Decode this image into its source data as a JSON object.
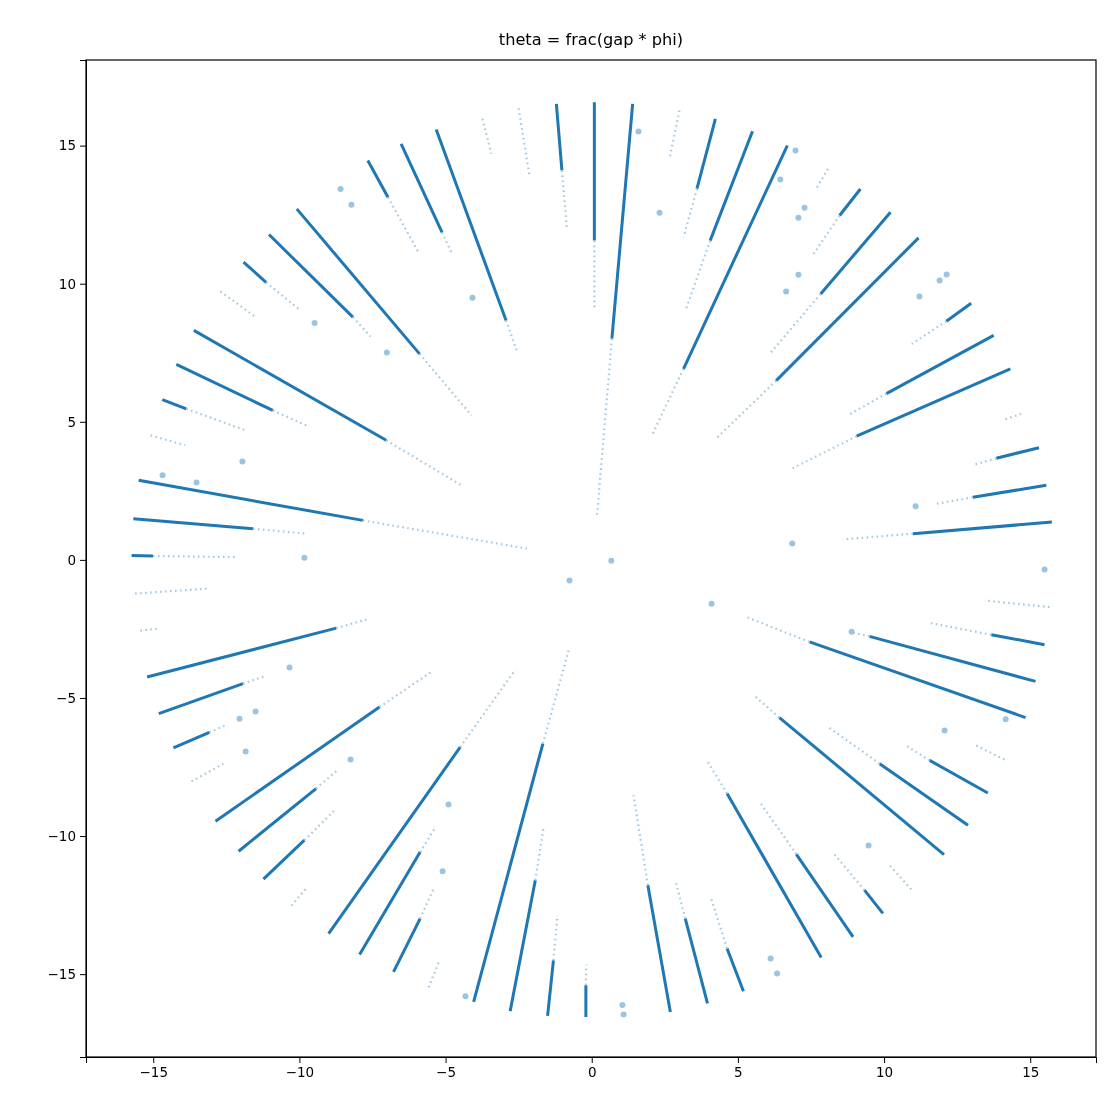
{
  "chart_data": {
    "type": "scatter",
    "title": "theta = frac(gap * phi)",
    "xlim": [
      -17.3,
      17.25
    ],
    "ylim": [
      -18.0,
      18.1
    ],
    "xticks": [
      {
        "value": -15,
        "label": "−15"
      },
      {
        "value": -10,
        "label": "−10"
      },
      {
        "value": -5,
        "label": "−5"
      },
      0,
      5,
      10,
      15
    ],
    "yticks": [
      {
        "value": -15,
        "label": "−15"
      },
      {
        "value": -10,
        "label": "−10"
      },
      {
        "value": -5,
        "label": "−5"
      },
      0,
      5,
      10,
      15
    ],
    "series": [
      {
        "type": "line",
        "color": "#1f77b4",
        "line_style": "solid",
        "x": [
          0.09,
          0.09,
          null,
          1.4,
          0.69,
          null,
          -1.21,
          -1.02,
          null,
          -5.32,
          -2.93,
          null,
          -6.52,
          -5.12,
          null,
          -7.66,
          -6.97,
          null,
          -10.09,
          -5.89,
          null,
          -11.04,
          -8.17,
          null,
          -11.91,
          -11.14,
          null,
          -13.61,
          -7.03,
          null,
          -14.21,
          -10.91,
          null,
          -14.69,
          -13.87,
          null,
          -15.5,
          -7.83,
          null,
          -15.68,
          -11.59,
          null,
          -15.74,
          -15.01,
          null,
          -15.21,
          -8.74,
          null,
          -14.81,
          -11.93,
          null,
          -14.31,
          -13.08,
          null,
          -12.87,
          -7.26,
          null,
          -12.08,
          -9.43,
          null,
          -11.23,
          -9.83,
          null,
          -9.0,
          -4.5,
          null,
          -7.94,
          -5.87,
          null,
          -6.78,
          -5.87,
          null,
          -4.04,
          -1.67,
          null,
          -2.79,
          -1.93,
          null,
          -1.51,
          -1.31,
          null,
          -0.2,
          -0.2,
          null,
          2.69,
          1.92,
          null,
          3.96,
          3.2,
          null,
          5.19,
          4.63,
          null,
          7.85,
          4.63,
          null,
          8.94,
          7.0,
          null,
          9.96,
          9.33,
          null,
          12.05,
          6.42,
          null,
          12.87,
          9.85,
          null,
          14.84,
          7.45,
          null,
          13.55,
          11.56,
          null,
          15.18,
          9.5,
          null,
          15.49,
          13.67,
          null,
          15.74,
          10.99,
          null,
          15.55,
          13.04,
          null,
          15.3,
          13.84,
          null,
          14.32,
          9.06,
          null,
          13.75,
          10.08,
          null,
          12.98,
          12.13,
          null,
          11.18,
          6.31,
          null,
          10.22,
          7.83,
          null,
          9.19,
          8.48,
          null,
          6.69,
          3.14,
          null,
          5.5,
          4.05,
          null,
          4.23,
          3.6
        ],
        "values": [
          16.57,
          11.56,
          null,
          16.51,
          8.01,
          null,
          16.51,
          14.1,
          null,
          15.58,
          8.67,
          null,
          15.06,
          11.86,
          null,
          14.46,
          13.13,
          null,
          12.71,
          7.46,
          null,
          11.78,
          8.79,
          null,
          10.78,
          10.05,
          null,
          8.31,
          4.33,
          null,
          7.08,
          5.41,
          null,
          5.8,
          5.47,
          null,
          2.88,
          1.43,
          null,
          1.49,
          1.13,
          null,
          0.16,
          0.14,
          null,
          -4.24,
          -2.47,
          null,
          -5.57,
          -4.48,
          null,
          -6.81,
          -6.25,
          null,
          -9.46,
          -5.33,
          null,
          -10.55,
          -8.28,
          null,
          -11.56,
          -10.15,
          null,
          -13.53,
          -6.78,
          null,
          -14.29,
          -10.58,
          null,
          -14.92,
          -12.99,
          null,
          -16.0,
          -6.65,
          null,
          -16.34,
          -11.6,
          null,
          -16.51,
          -14.5,
          null,
          -16.55,
          -15.4,
          null,
          -16.37,
          -11.78,
          null,
          -16.06,
          -12.99,
          null,
          -15.62,
          -14.07,
          null,
          -14.4,
          -8.46,
          null,
          -13.65,
          -10.66,
          null,
          -12.8,
          -11.96,
          null,
          -10.67,
          -5.71,
          null,
          -9.61,
          -7.38,
          null,
          -5.71,
          -2.97,
          null,
          -8.44,
          -7.26,
          null,
          -4.4,
          -2.77,
          null,
          -3.07,
          -2.71,
          null,
          1.37,
          0.95,
          null,
          2.7,
          2.27,
          null,
          4.06,
          3.68,
          null,
          6.92,
          4.48,
          null,
          8.13,
          6.02,
          null,
          9.29,
          8.64,
          null,
          11.66,
          6.49,
          null,
          12.59,
          9.63,
          null,
          13.43,
          12.47,
          null,
          15.0,
          6.92,
          null,
          15.52,
          11.56,
          null,
          15.97,
          13.44
        ]
      },
      {
        "type": "line",
        "color": "#a5c8e3",
        "line_style": "dotted",
        "x": [
          0.09,
          0.09,
          null,
          0.69,
          0.18,
          null,
          -1.02,
          -0.85,
          null,
          -2.5,
          -2.13,
          null,
          -3.74,
          -3.43,
          null,
          -2.93,
          -2.54,
          null,
          -5.12,
          -4.76,
          null,
          -6.97,
          -5.93,
          null,
          -5.89,
          -4.11,
          null,
          -8.17,
          -7.57,
          null,
          -11.14,
          -10.03,
          null,
          -12.7,
          -11.47,
          null,
          -7.03,
          -4.41,
          null,
          -10.91,
          -9.69,
          null,
          -13.87,
          -11.84,
          null,
          -15.09,
          -13.91,
          null,
          -7.83,
          -2.22,
          null,
          -11.59,
          -9.76,
          null,
          -15.01,
          -12.1,
          null,
          -15.62,
          -13.15,
          null,
          -15.44,
          -14.85,
          null,
          -8.74,
          -7.66,
          null,
          -11.93,
          -11.23,
          null,
          -13.08,
          -12.56,
          null,
          -13.69,
          -12.6,
          null,
          -7.26,
          -5.48,
          null,
          -9.43,
          -8.74,
          null,
          -9.83,
          -8.77,
          null,
          -10.27,
          -9.77,
          null,
          -4.5,
          -2.61,
          null,
          -5.87,
          -5.35,
          null,
          -5.87,
          -5.41,
          null,
          -5.58,
          -5.24,
          null,
          -1.67,
          -0.79,
          null,
          -1.93,
          -1.65,
          null,
          -1.31,
          -1.17,
          null,
          -0.2,
          -0.18,
          null,
          1.92,
          1.43,
          null,
          3.2,
          2.87,
          null,
          4.63,
          4.06,
          null,
          4.63,
          3.94,
          null,
          7.0,
          5.78,
          null,
          9.33,
          8.31,
          null,
          10.93,
          10.19,
          null,
          6.42,
          5.54,
          null,
          9.85,
          8.06,
          null,
          7.45,
          5.29,
          null,
          11.56,
          10.7,
          null,
          14.12,
          13.13,
          null,
          9.5,
          8.87,
          null,
          13.67,
          11.49,
          null,
          15.66,
          13.44,
          null,
          10.99,
          8.59,
          null,
          13.04,
          11.79,
          null,
          13.84,
          13.1,
          null,
          14.69,
          14.09,
          null,
          9.06,
          6.77,
          null,
          10.08,
          8.82,
          null,
          12.13,
          10.95,
          null,
          6.31,
          4.28,
          null,
          7.83,
          6.12,
          null,
          8.48,
          7.59,
          null,
          8.08,
          7.66,
          null,
          3.14,
          2.06,
          null,
          4.05,
          3.22,
          null,
          3.6,
          3.14,
          null,
          3.0,
          2.66
        ],
        "values": [
          11.56,
          9.15,
          null,
          8.01,
          1.61,
          null,
          14.1,
          11.99,
          null,
          16.35,
          13.92,
          null,
          15.97,
          14.7,
          null,
          8.67,
          7.5,
          null,
          11.86,
          11.04,
          null,
          13.13,
          11.14,
          null,
          7.46,
          5.23,
          null,
          8.79,
          8.09,
          null,
          10.05,
          9.09,
          null,
          9.72,
          8.77,
          null,
          4.33,
          2.67,
          null,
          5.41,
          4.83,
          null,
          5.47,
          4.69,
          null,
          4.51,
          4.15,
          null,
          1.43,
          0.41,
          null,
          1.13,
          0.95,
          null,
          0.14,
          0.1,
          null,
          -1.22,
          -1.04,
          null,
          -2.56,
          -2.49,
          null,
          -2.47,
          -2.15,
          null,
          -4.48,
          -4.23,
          null,
          -6.25,
          -6.0,
          null,
          -8.02,
          -7.38,
          null,
          -5.33,
          -4.05,
          null,
          -8.28,
          -7.65,
          null,
          -10.15,
          -9.04,
          null,
          -12.52,
          -11.9,
          null,
          -6.78,
          -3.97,
          null,
          -10.58,
          -9.69,
          null,
          -12.99,
          -11.9,
          null,
          -15.48,
          -14.58,
          null,
          -6.65,
          -3.28,
          null,
          -11.6,
          -9.71,
          null,
          -14.5,
          -12.87,
          null,
          -15.4,
          -14.65,
          null,
          -11.78,
          -8.52,
          null,
          -12.99,
          -11.64,
          null,
          -14.07,
          -12.18,
          null,
          -8.46,
          -7.26,
          null,
          -10.66,
          -8.82,
          null,
          -11.96,
          -10.67,
          null,
          -11.93,
          -11.06,
          null,
          -5.71,
          -4.9,
          null,
          -7.38,
          -6.03,
          null,
          -2.97,
          -2.07,
          null,
          -7.26,
          -6.69,
          null,
          -7.23,
          -6.71,
          null,
          -2.77,
          -2.62,
          null,
          -2.71,
          -2.27,
          null,
          -1.71,
          -1.47,
          null,
          0.95,
          0.74,
          null,
          2.27,
          2.03,
          null,
          3.68,
          3.45,
          null,
          5.29,
          5.07,
          null,
          4.48,
          3.26,
          null,
          6.02,
          5.27,
          null,
          8.64,
          7.82,
          null,
          6.49,
          4.42,
          null,
          9.63,
          7.5,
          null,
          12.47,
          11.08,
          null,
          14.16,
          13.4,
          null,
          6.92,
          4.51,
          null,
          11.56,
          9.06,
          null,
          13.44,
          11.68,
          null,
          16.27,
          14.52
        ]
      },
      {
        "type": "scatter",
        "color": "#9cc3e0",
        "marker": "circle",
        "x": [
          -8.59,
          -8.22,
          -7.01,
          -9.48,
          -11.95,
          -14.68,
          -13.52,
          -9.83,
          -10.34,
          -11.5,
          -12.05,
          -11.84,
          -8.25,
          -4.9,
          -5.1,
          -4.08,
          -4.32,
          -0.76,
          0.67,
          1.05,
          1.09,
          6.12,
          6.34,
          9.47,
          8.89,
          12.07,
          14.16,
          15.49,
          6.86,
          11.08,
          11.9,
          12.14,
          11.21,
          7.07,
          7.28,
          6.65,
          7.07,
          6.97,
          6.45,
          1.6,
          2.32,
          4.1
        ],
        "values": [
          13.43,
          12.86,
          7.51,
          8.58,
          3.56,
          3.06,
          2.8,
          0.08,
          -3.9,
          -5.49,
          -5.75,
          -6.94,
          -7.23,
          -8.86,
          -11.27,
          9.49,
          -15.8,
          -0.75,
          -0.03,
          -16.12,
          -16.46,
          -14.43,
          -14.98,
          -10.34,
          -2.6,
          -6.18,
          -5.77,
          -0.35,
          0.59,
          1.94,
          10.12,
          10.33,
          9.54,
          12.39,
          12.75,
          9.72,
          10.32,
          14.82,
          13.77,
          15.51,
          12.57,
          -1.59
        ]
      }
    ]
  }
}
